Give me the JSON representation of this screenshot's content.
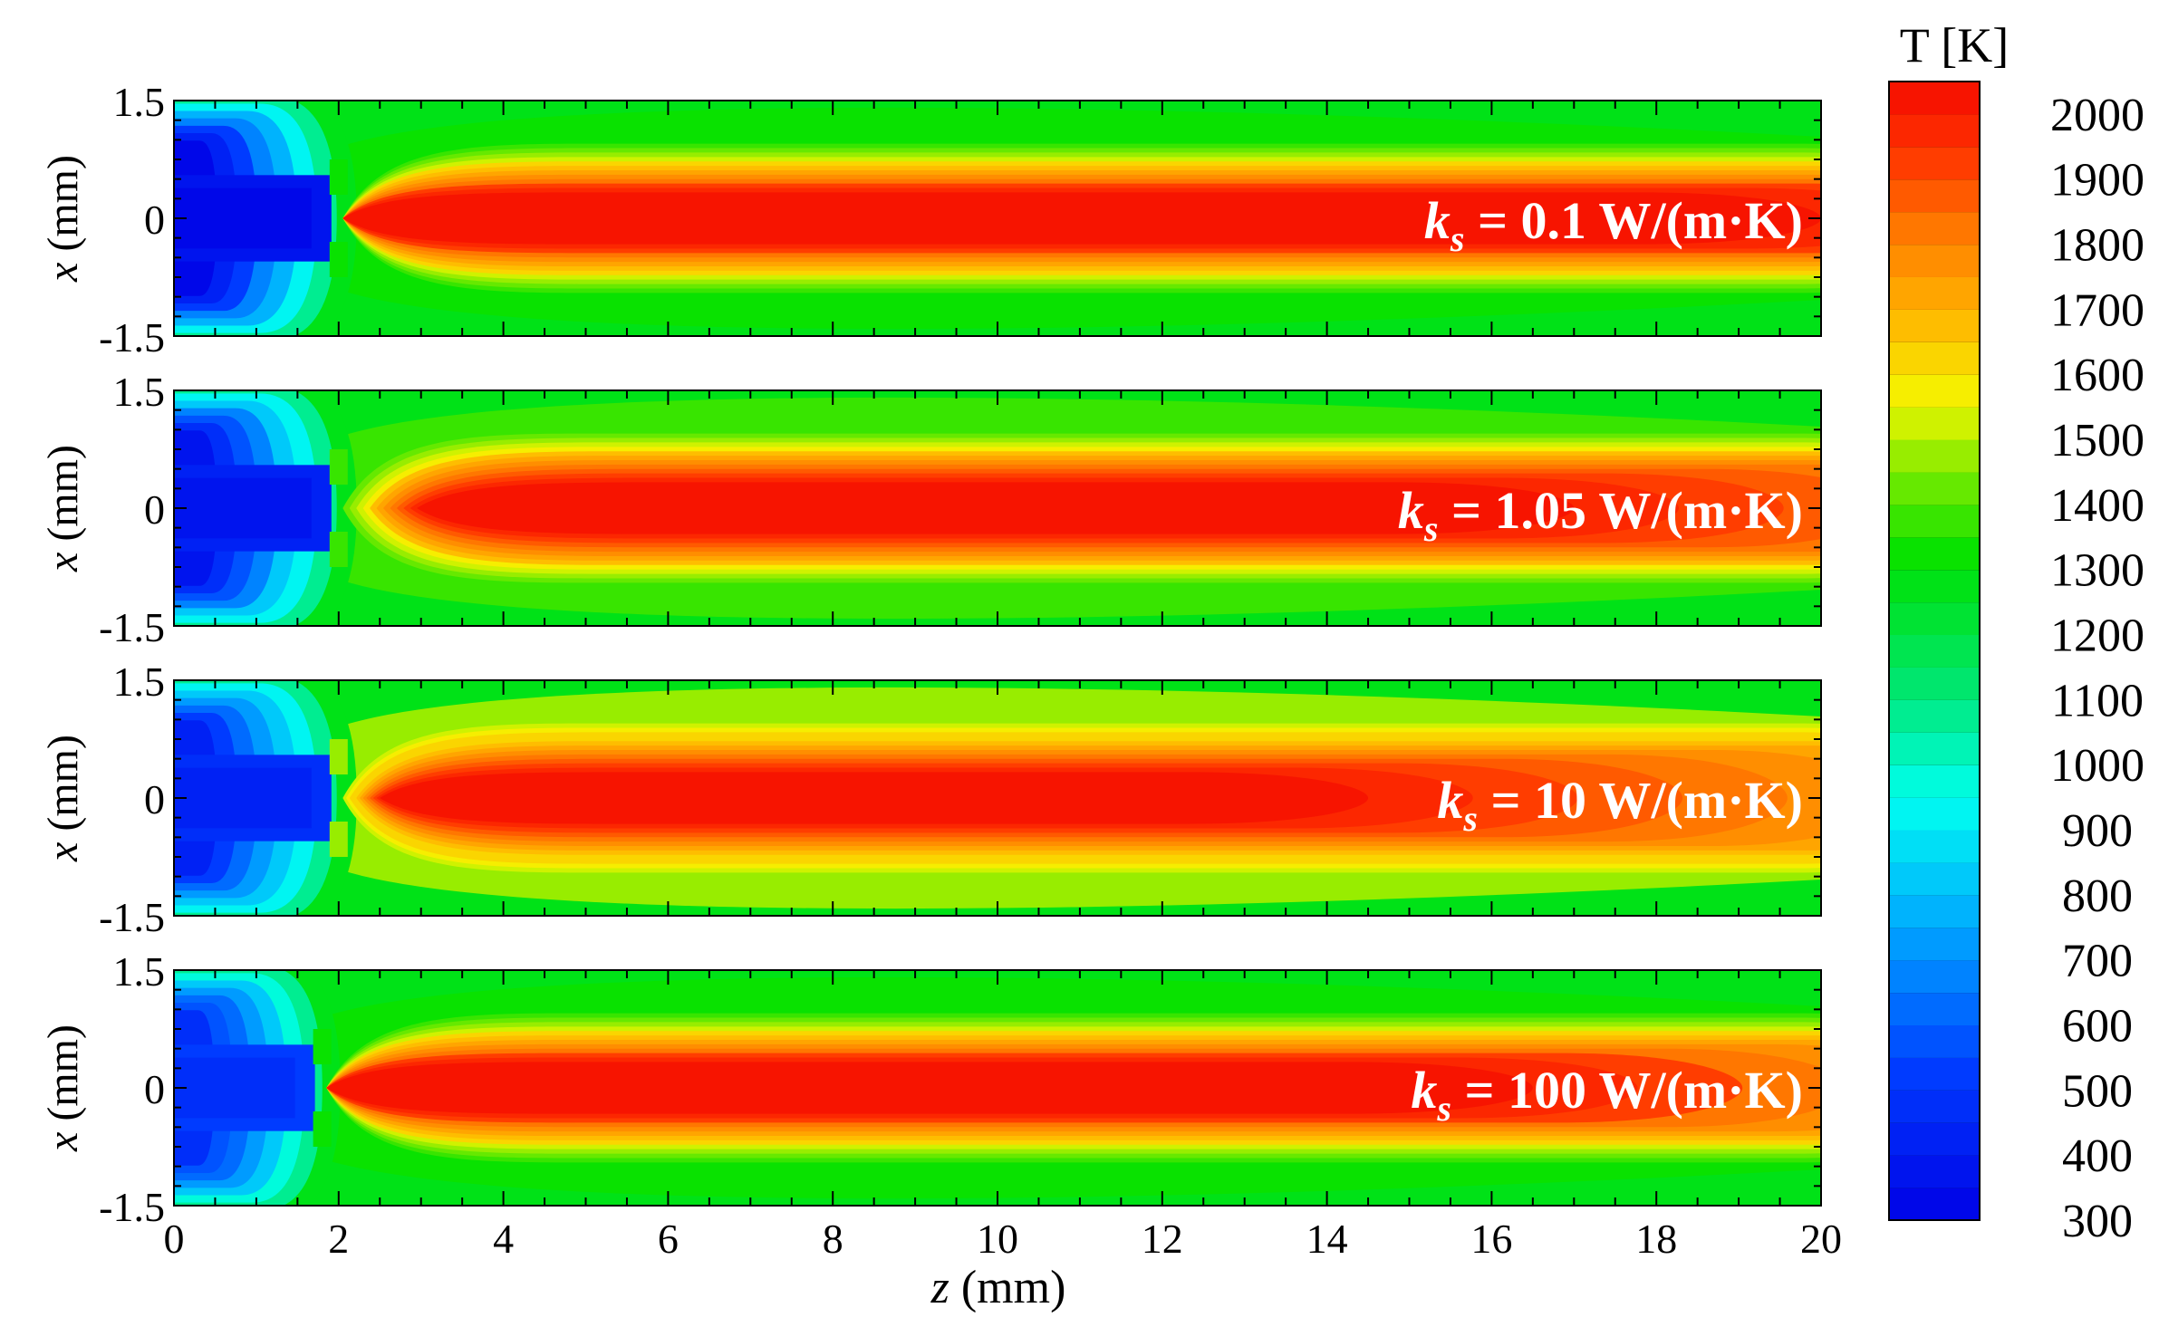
{
  "chart_data": {
    "type": "heatmap",
    "xlabel_var": "z",
    "xlabel_unit": " (mm)",
    "ylabel_var": "x",
    "ylabel_unit": " (mm)",
    "xlim": [
      0,
      20
    ],
    "ylim": [
      -1.5,
      1.5
    ],
    "x_ticks": [
      0,
      2,
      4,
      6,
      8,
      10,
      12,
      14,
      16,
      18,
      20
    ],
    "x_tick_labels": [
      "0",
      "2",
      "4",
      "6",
      "8",
      "10",
      "12",
      "14",
      "16",
      "18",
      "20"
    ],
    "y_ticks": [
      1.5,
      0,
      -1.5
    ],
    "y_tick_labels": [
      "1.5",
      "0",
      "-1.5"
    ],
    "colorbar": {
      "title": "T [K]",
      "range": [
        300,
        2050
      ],
      "levels": 35,
      "ticks": [
        2000,
        1900,
        1800,
        1700,
        1600,
        1500,
        1400,
        1300,
        1200,
        1100,
        1000,
        900,
        800,
        700,
        600,
        500,
        400,
        300
      ],
      "tick_labels": [
        "2000",
        "1900",
        "1800",
        "1700",
        "1600",
        "1500",
        "1400",
        "1300",
        "1200",
        "1100",
        "1000",
        "900",
        "800",
        "700",
        "600",
        "500",
        "400",
        "300"
      ]
    },
    "panels": [
      {
        "label_var": "k",
        "label_sub": "s",
        "label_rest": " = 0.1 W/(m·K)",
        "k_s": 0.1,
        "T_outer": 1250,
        "T_wall_region": 1300,
        "T_core_peak": 2030,
        "T_inlet": 330,
        "preheat_extent_mm": 2.0,
        "core_peak_center_mm": 11,
        "core_peak_length_mm": 18
      },
      {
        "label_var": "k",
        "label_sub": "s",
        "label_rest": " = 1.05 W/(m·K)",
        "k_s": 1.05,
        "T_outer": 1250,
        "T_wall_region": 1380,
        "T_core_peak": 2020,
        "T_inlet": 380,
        "preheat_extent_mm": 2.0,
        "core_peak_center_mm": 10,
        "core_peak_length_mm": 14
      },
      {
        "label_var": "k",
        "label_sub": "s",
        "label_rest": " = 10 W/(m·K)",
        "k_s": 10,
        "T_outer": 1250,
        "T_wall_region": 1450,
        "T_core_peak": 2020,
        "T_inlet": 420,
        "preheat_extent_mm": 2.0,
        "core_peak_center_mm": 8.5,
        "core_peak_length_mm": 12
      },
      {
        "label_var": "k",
        "label_sub": "s",
        "label_rest": " = 100 W/(m·K)",
        "k_s": 100,
        "T_outer": 1250,
        "T_wall_region": 1300,
        "T_core_peak": 2030,
        "T_inlet": 460,
        "preheat_extent_mm": 1.8,
        "core_peak_center_mm": 9,
        "core_peak_length_mm": 15
      }
    ]
  }
}
